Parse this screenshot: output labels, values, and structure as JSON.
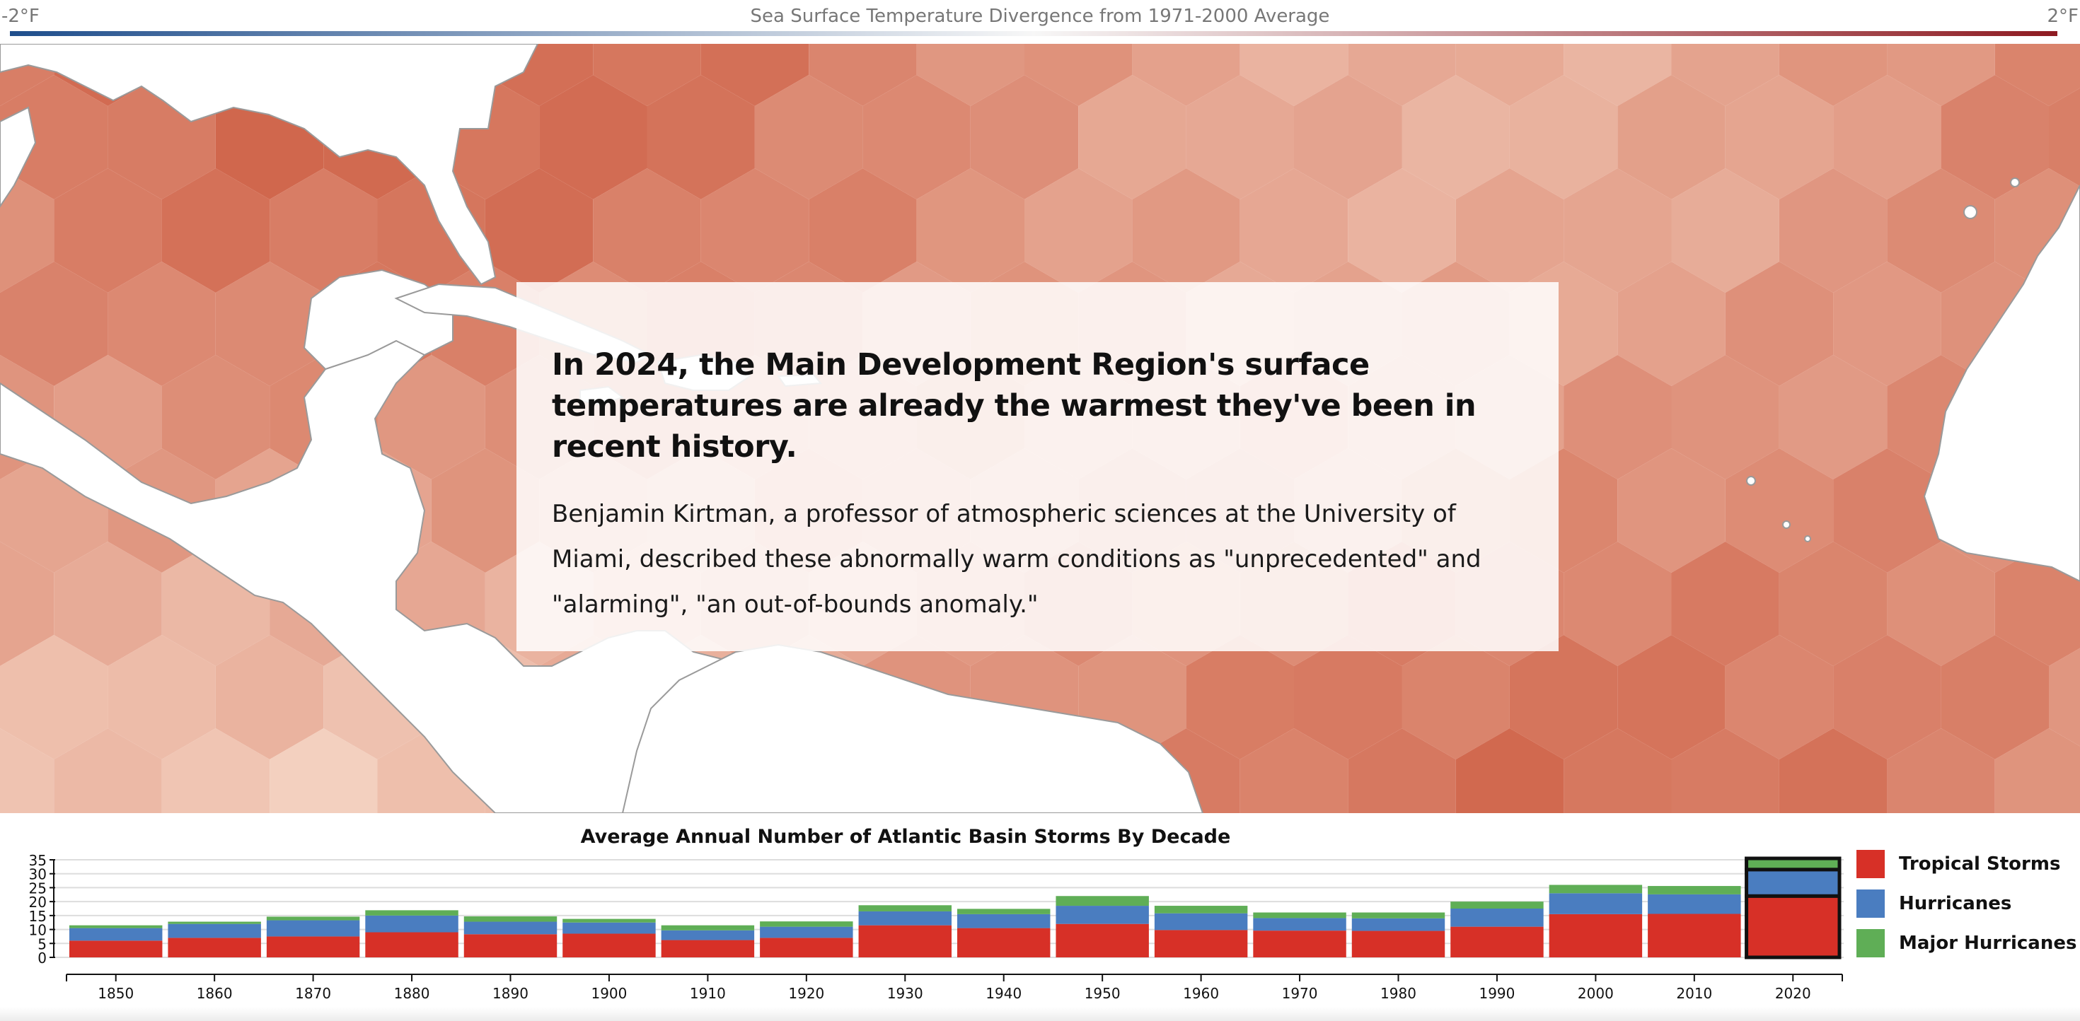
{
  "colors": {
    "scale_cold": "#1f4e8c",
    "scale_mid": "#f7f7f7",
    "scale_hot": "#8e1b22",
    "tropical": "#d73027",
    "hurricane": "#4a7dc0",
    "major": "#5fae56",
    "grid": "#dddddd"
  },
  "temperature_scale": {
    "min_label": "-2°F",
    "max_label": "2°F",
    "title": "Sea Surface Temperature Divergence from 1971-2000 Average"
  },
  "map": {
    "description_icon": "hex-heatmap"
  },
  "callout": {
    "heading": "In 2024, the Main Development Region's surface temperatures are already the warmest they've been in recent history.",
    "body": "Benjamin Kirtman, a professor of atmospheric sciences at the University of Miami, described these abnormally warm conditions as \"unprecedented\" and \"alarming\", \"an out-of-bounds anomaly.\""
  },
  "chart_data": {
    "type": "bar",
    "stacked": true,
    "title": "Average Annual Number of Atlantic Basin Storms By Decade",
    "xlabel": "",
    "ylabel": "",
    "ylim": [
      0,
      35
    ],
    "yticks": [
      0,
      5,
      10,
      15,
      20,
      25,
      30,
      35
    ],
    "categories": [
      "1850",
      "1860",
      "1870",
      "1880",
      "1890",
      "1900",
      "1910",
      "1920",
      "1930",
      "1940",
      "1950",
      "1960",
      "1970",
      "1980",
      "1990",
      "2000",
      "2010",
      "2020"
    ],
    "highlighted_category": "2020",
    "series": [
      {
        "name": "Tropical Storms",
        "color_key": "tropical",
        "values": [
          6,
          7,
          7.5,
          9,
          8.3,
          8.5,
          6.2,
          7,
          11.5,
          10.5,
          12,
          9.8,
          9.6,
          9.5,
          11,
          15.5,
          15.6,
          22
        ]
      },
      {
        "name": "Hurricanes",
        "color_key": "hurricane",
        "values": [
          4.5,
          5,
          5.8,
          6,
          4.5,
          4,
          3.5,
          4,
          5,
          5,
          6.5,
          6,
          4.5,
          4.5,
          6.5,
          7.5,
          7,
          9.5
        ]
      },
      {
        "name": "Major Hurricanes",
        "color_key": "major",
        "values": [
          1,
          0.8,
          1.3,
          1.9,
          1.9,
          1.3,
          1.8,
          1.9,
          2.2,
          1.9,
          3.5,
          2.7,
          2,
          2.1,
          2.5,
          3,
          3,
          4
        ]
      }
    ]
  }
}
